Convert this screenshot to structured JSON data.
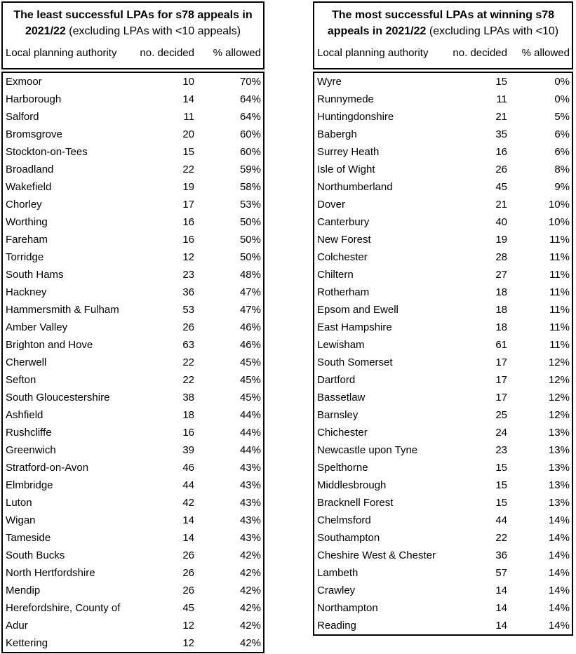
{
  "tables": [
    {
      "id": "least-successful",
      "title_line1_bold": "The least successful LPAs for s78 appeals in",
      "title_line2_bold": "2021/22",
      "title_line2_normal": "(excluding LPAs with <10 appeals)",
      "columns": [
        "Local planning authority",
        "no. decided",
        "% allowed"
      ],
      "rows": [
        {
          "name": "Exmoor",
          "decided": "10",
          "allowed": "70%"
        },
        {
          "name": "Harborough",
          "decided": "14",
          "allowed": "64%"
        },
        {
          "name": "Salford",
          "decided": "11",
          "allowed": "64%"
        },
        {
          "name": "Bromsgrove",
          "decided": "20",
          "allowed": "60%"
        },
        {
          "name": "Stockton-on-Tees",
          "decided": "15",
          "allowed": "60%"
        },
        {
          "name": "Broadland",
          "decided": "22",
          "allowed": "59%"
        },
        {
          "name": "Wakefield",
          "decided": "19",
          "allowed": "58%"
        },
        {
          "name": "Chorley",
          "decided": "17",
          "allowed": "53%"
        },
        {
          "name": "Worthing",
          "decided": "16",
          "allowed": "50%"
        },
        {
          "name": "Fareham",
          "decided": "16",
          "allowed": "50%"
        },
        {
          "name": "Torridge",
          "decided": "12",
          "allowed": "50%"
        },
        {
          "name": "South Hams",
          "decided": "23",
          "allowed": "48%"
        },
        {
          "name": "Hackney",
          "decided": "36",
          "allowed": "47%"
        },
        {
          "name": "Hammersmith & Fulham",
          "decided": "53",
          "allowed": "47%"
        },
        {
          "name": "Amber Valley",
          "decided": "26",
          "allowed": "46%"
        },
        {
          "name": "Brighton and Hove",
          "decided": "63",
          "allowed": "46%"
        },
        {
          "name": "Cherwell",
          "decided": "22",
          "allowed": "45%"
        },
        {
          "name": "Sefton",
          "decided": "22",
          "allowed": "45%"
        },
        {
          "name": "South Gloucestershire",
          "decided": "38",
          "allowed": "45%"
        },
        {
          "name": "Ashfield",
          "decided": "18",
          "allowed": "44%"
        },
        {
          "name": "Rushcliffe",
          "decided": "16",
          "allowed": "44%"
        },
        {
          "name": "Greenwich",
          "decided": "39",
          "allowed": "44%"
        },
        {
          "name": "Stratford-on-Avon",
          "decided": "46",
          "allowed": "43%"
        },
        {
          "name": "Elmbridge",
          "decided": "44",
          "allowed": "43%"
        },
        {
          "name": "Luton",
          "decided": "42",
          "allowed": "43%"
        },
        {
          "name": "Wigan",
          "decided": "14",
          "allowed": "43%"
        },
        {
          "name": "Tameside",
          "decided": "14",
          "allowed": "43%"
        },
        {
          "name": "South Bucks",
          "decided": "26",
          "allowed": "42%"
        },
        {
          "name": "North Hertfordshire",
          "decided": "26",
          "allowed": "42%"
        },
        {
          "name": "Mendip",
          "decided": "26",
          "allowed": "42%"
        },
        {
          "name": "Herefordshire, County of",
          "decided": "45",
          "allowed": "42%"
        },
        {
          "name": "Adur",
          "decided": "12",
          "allowed": "42%"
        },
        {
          "name": "Kettering",
          "decided": "12",
          "allowed": "42%"
        }
      ]
    },
    {
      "id": "most-successful",
      "title_line1_bold": "The most successful LPAs at winning s78",
      "title_line2_bold": "appeals in 2021/22",
      "title_line2_normal": "(excluding LPAs with <10)",
      "columns": [
        "Local planning authority",
        "no. decided",
        "% allowed"
      ],
      "rows": [
        {
          "name": "Wyre",
          "decided": "15",
          "allowed": "0%"
        },
        {
          "name": "Runnymede",
          "decided": "11",
          "allowed": "0%"
        },
        {
          "name": "Huntingdonshire",
          "decided": "21",
          "allowed": "5%"
        },
        {
          "name": "Babergh",
          "decided": "35",
          "allowed": "6%"
        },
        {
          "name": "Surrey Heath",
          "decided": "16",
          "allowed": "6%"
        },
        {
          "name": "Isle of Wight",
          "decided": "26",
          "allowed": "8%"
        },
        {
          "name": "Northumberland",
          "decided": "45",
          "allowed": "9%"
        },
        {
          "name": "Dover",
          "decided": "21",
          "allowed": "10%"
        },
        {
          "name": "Canterbury",
          "decided": "40",
          "allowed": "10%"
        },
        {
          "name": "New Forest",
          "decided": "19",
          "allowed": "11%"
        },
        {
          "name": "Colchester",
          "decided": "28",
          "allowed": "11%"
        },
        {
          "name": "Chiltern",
          "decided": "27",
          "allowed": "11%"
        },
        {
          "name": "Rotherham",
          "decided": "18",
          "allowed": "11%"
        },
        {
          "name": "Epsom and Ewell",
          "decided": "18",
          "allowed": "11%"
        },
        {
          "name": "East Hampshire",
          "decided": "18",
          "allowed": "11%"
        },
        {
          "name": "Lewisham",
          "decided": "61",
          "allowed": "11%"
        },
        {
          "name": "South Somerset",
          "decided": "17",
          "allowed": "12%"
        },
        {
          "name": "Dartford",
          "decided": "17",
          "allowed": "12%"
        },
        {
          "name": "Bassetlaw",
          "decided": "17",
          "allowed": "12%"
        },
        {
          "name": "Barnsley",
          "decided": "25",
          "allowed": "12%"
        },
        {
          "name": "Chichester",
          "decided": "24",
          "allowed": "13%"
        },
        {
          "name": "Newcastle upon Tyne",
          "decided": "23",
          "allowed": "13%"
        },
        {
          "name": "Spelthorne",
          "decided": "15",
          "allowed": "13%"
        },
        {
          "name": "Middlesbrough",
          "decided": "15",
          "allowed": "13%"
        },
        {
          "name": "Bracknell Forest",
          "decided": "15",
          "allowed": "13%"
        },
        {
          "name": "Chelmsford",
          "decided": "44",
          "allowed": "14%"
        },
        {
          "name": "Southampton",
          "decided": "22",
          "allowed": "14%"
        },
        {
          "name": "Cheshire West & Chester",
          "decided": "36",
          "allowed": "14%"
        },
        {
          "name": "Lambeth",
          "decided": "57",
          "allowed": "14%"
        },
        {
          "name": "Crawley",
          "decided": "14",
          "allowed": "14%"
        },
        {
          "name": "Northampton",
          "decided": "14",
          "allowed": "14%"
        },
        {
          "name": "Reading",
          "decided": "14",
          "allowed": "14%"
        }
      ]
    }
  ],
  "colors": {
    "border": "#000000",
    "text": "#000000",
    "background": "#ffffff"
  }
}
